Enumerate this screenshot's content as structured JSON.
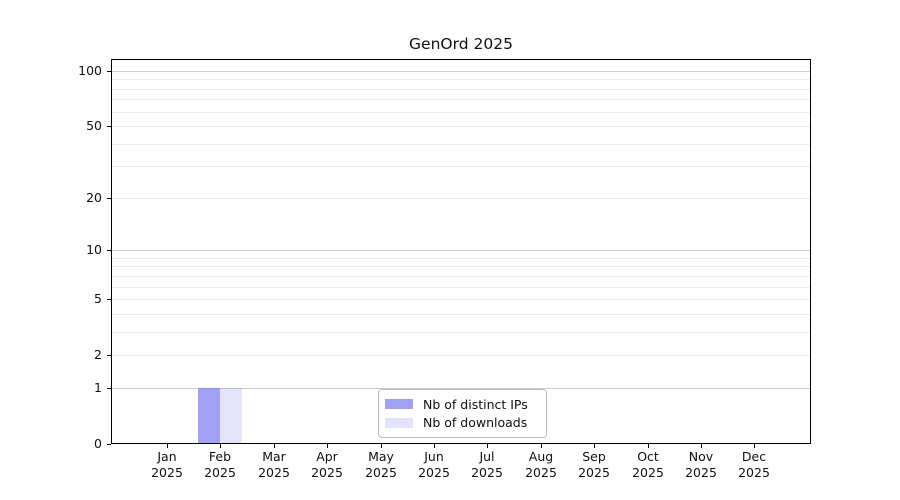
{
  "figure": {
    "background": "#ffffff",
    "axis_color": "#000000",
    "text_color": "#111111",
    "grid_minor_color": "#ececec",
    "grid_major_color": "#cdcdcd",
    "legend_border_color": "#bdbdbd"
  },
  "chart_data": {
    "type": "bar",
    "title": "GenOrd 2025",
    "categories": [
      "Jan 2025",
      "Feb 2025",
      "Mar 2025",
      "Apr 2025",
      "May 2025",
      "Jun 2025",
      "Jul 2025",
      "Aug 2025",
      "Sep 2025",
      "Oct 2025",
      "Nov 2025",
      "Dec 2025"
    ],
    "months": [
      "Jan",
      "Feb",
      "Mar",
      "Apr",
      "May",
      "Jun",
      "Jul",
      "Aug",
      "Sep",
      "Oct",
      "Nov",
      "Dec"
    ],
    "year": "2025",
    "series": [
      {
        "name": "Nb of distinct IPs",
        "color": "rgba(102,102,238,0.62)",
        "values": [
          0,
          1,
          0,
          0,
          0,
          0,
          0,
          0,
          0,
          0,
          0,
          0
        ]
      },
      {
        "name": "Nb of downloads",
        "color": "rgba(102,102,238,0.18)",
        "values": [
          0,
          1,
          0,
          0,
          0,
          0,
          0,
          0,
          0,
          0,
          0,
          0
        ]
      }
    ],
    "xlabel": "",
    "ylabel": "",
    "y_scale": "log1p",
    "ylim": [
      0,
      116
    ],
    "y_major_ticks": [
      0,
      1,
      2,
      5,
      10,
      20,
      50,
      100
    ],
    "y_major_gridlines": [
      1,
      10,
      100
    ],
    "y_minor_gridlines": [
      2,
      3,
      4,
      5,
      6,
      7,
      8,
      9,
      20,
      30,
      40,
      50,
      60,
      70,
      80,
      90
    ],
    "grid": "on",
    "legend_position": "lower center"
  }
}
